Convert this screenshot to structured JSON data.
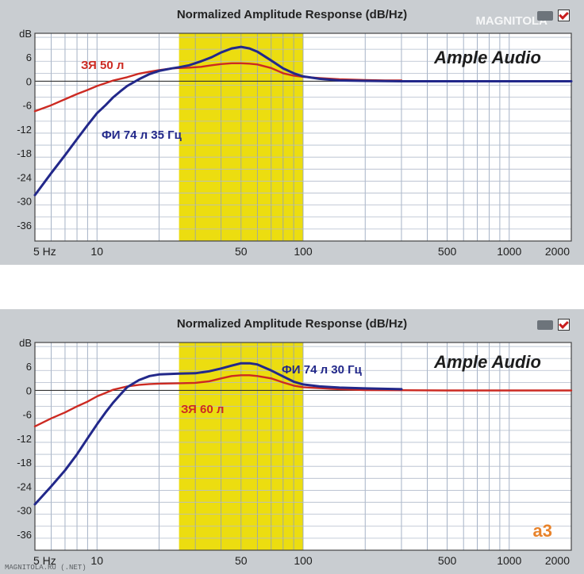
{
  "chart_data": [
    {
      "type": "line",
      "title": "Normalized Amplitude Response (dB/Hz)",
      "xscale": "log",
      "xlim": [
        5,
        2000
      ],
      "ylim": [
        -40,
        12
      ],
      "x_tick_labels": [
        "5 Hz",
        "10",
        "50",
        "100",
        "500",
        "1000",
        "2000"
      ],
      "x_tick_values": [
        5,
        10,
        50,
        100,
        500,
        1000,
        2000
      ],
      "y_tick_labels": [
        "dB",
        "6",
        "0",
        "-6",
        "-12",
        "-18",
        "-24",
        "-30",
        "-36"
      ],
      "y_tick_values": [
        12,
        6,
        0,
        -6,
        -12,
        -18,
        -24,
        -30,
        -36
      ],
      "highlight_band": [
        25,
        100
      ],
      "grid": true,
      "brand_text": "Ample Audio",
      "watermark_text": "MAGNITOLA",
      "series": [
        {
          "name": "ЗЯ 50 л",
          "color": "#cc2a22",
          "x": [
            5,
            6,
            7,
            8,
            9,
            10,
            12,
            14,
            16,
            18,
            20,
            23,
            25,
            28,
            32,
            36,
            40,
            45,
            50,
            55,
            60,
            70,
            80,
            90,
            100,
            120,
            150,
            200,
            250,
            300
          ],
          "y": [
            -7.5,
            -6.0,
            -4.5,
            -3.2,
            -2.2,
            -1.2,
            0.2,
            1.0,
            1.9,
            2.4,
            2.8,
            3.2,
            3.3,
            3.4,
            3.6,
            4.0,
            4.3,
            4.5,
            4.5,
            4.4,
            4.2,
            3.3,
            2.0,
            1.4,
            1.1,
            0.8,
            0.5,
            0.3,
            0.2,
            0.2
          ]
        },
        {
          "name": "ФИ 74 л 35 Гц",
          "color": "#22288a",
          "x": [
            5,
            6,
            7,
            8,
            9,
            10,
            11,
            12,
            13,
            14,
            16,
            18,
            20,
            23,
            25,
            28,
            32,
            36,
            40,
            45,
            50,
            55,
            60,
            70,
            80,
            90,
            100,
            120,
            150,
            200,
            300,
            500,
            1000,
            2000
          ],
          "y": [
            -28.5,
            -23,
            -18.5,
            -14.5,
            -11,
            -8,
            -6,
            -4,
            -2.5,
            -1.2,
            0.5,
            1.8,
            2.6,
            3.2,
            3.5,
            4.0,
            5.0,
            6.0,
            7.2,
            8.2,
            8.6,
            8.2,
            7.4,
            5.2,
            3.2,
            2.0,
            1.2,
            0.6,
            0.2,
            0.1,
            0.0,
            0.0,
            0.0,
            0.0
          ]
        }
      ]
    },
    {
      "type": "line",
      "title": "Normalized Amplitude Response (dB/Hz)",
      "xscale": "log",
      "xlim": [
        5,
        2000
      ],
      "ylim": [
        -40,
        12
      ],
      "x_tick_labels": [
        "5 Hz",
        "10",
        "50",
        "100",
        "500",
        "1000",
        "2000"
      ],
      "x_tick_values": [
        5,
        10,
        50,
        100,
        500,
        1000,
        2000
      ],
      "y_tick_labels": [
        "dB",
        "6",
        "0",
        "-6",
        "-12",
        "-18",
        "-24",
        "-30",
        "-36"
      ],
      "y_tick_values": [
        12,
        6,
        0,
        -6,
        -12,
        -18,
        -24,
        -30,
        -36
      ],
      "highlight_band": [
        25,
        100
      ],
      "grid": true,
      "brand_text": "Ample Audio",
      "corner_logo_text": "a3",
      "footer_text": "MAGNITOLA.RU   (.NET)",
      "series": [
        {
          "name": "ЗЯ 60 л",
          "color": "#cc2a22",
          "x": [
            5,
            6,
            7,
            8,
            9,
            10,
            12,
            14,
            16,
            18,
            20,
            25,
            30,
            35,
            40,
            45,
            50,
            55,
            60,
            70,
            80,
            90,
            100,
            150,
            200,
            500,
            1000,
            2000
          ],
          "y": [
            -9,
            -7,
            -5.5,
            -4,
            -2.8,
            -1.5,
            0.2,
            1.0,
            1.4,
            1.6,
            1.7,
            1.8,
            1.9,
            2.3,
            3.0,
            3.6,
            3.8,
            3.8,
            3.6,
            3.0,
            2.0,
            1.2,
            0.8,
            0.3,
            0.1,
            0.0,
            0.0,
            0.0
          ]
        },
        {
          "name": "ФИ 74 л 30 Гц",
          "color": "#22288a",
          "x": [
            5,
            6,
            7,
            8,
            9,
            10,
            11,
            12,
            13,
            14,
            16,
            18,
            20,
            25,
            30,
            35,
            40,
            45,
            50,
            55,
            60,
            70,
            80,
            90,
            100,
            120,
            150,
            200,
            300
          ],
          "y": [
            -28.5,
            -24,
            -20,
            -16,
            -12,
            -8.5,
            -5.5,
            -3,
            -1,
            0.8,
            2.6,
            3.6,
            4.0,
            4.2,
            4.3,
            4.8,
            5.5,
            6.2,
            6.8,
            6.8,
            6.5,
            5.0,
            3.5,
            2.2,
            1.5,
            1.0,
            0.7,
            0.5,
            0.3
          ]
        }
      ]
    }
  ]
}
